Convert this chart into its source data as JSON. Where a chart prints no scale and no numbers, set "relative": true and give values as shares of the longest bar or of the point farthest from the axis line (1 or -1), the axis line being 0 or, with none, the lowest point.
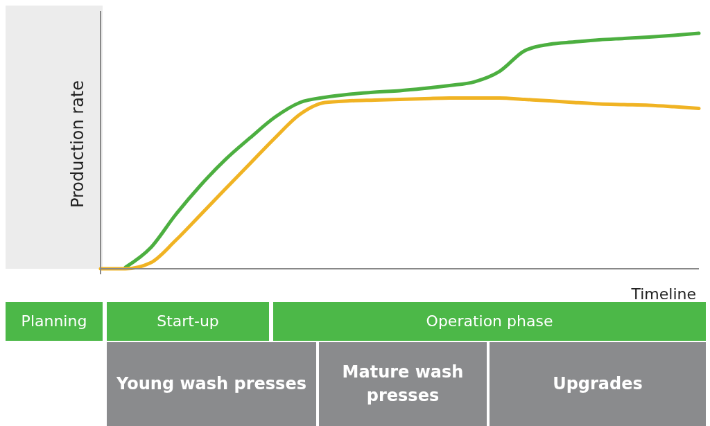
{
  "chart_data": {
    "type": "line",
    "relative": true,
    "xlabel": "Timeline",
    "ylabel": "Production rate",
    "categories": [
      null,
      null,
      null,
      null,
      null,
      null,
      null,
      null,
      null,
      null,
      null,
      null,
      null,
      null,
      null,
      null,
      null,
      null,
      null,
      null,
      null,
      null,
      null,
      null,
      null
    ],
    "series": [
      {
        "color": "#4caf40",
        "values": [
          null,
          0.006,
          0.088,
          0.228,
          0.353,
          0.463,
          0.556,
          0.644,
          0.706,
          0.728,
          0.741,
          0.75,
          0.756,
          0.766,
          0.778,
          0.794,
          0.838,
          0.925,
          0.953,
          0.963,
          0.972,
          0.978,
          0.984,
          0.991,
          1
        ]
      },
      {
        "color": "#f0b323",
        "values": [
          0,
          0,
          0.025,
          0.119,
          0.228,
          0.338,
          0.447,
          0.556,
          0.656,
          0.706,
          0.713,
          0.716,
          0.719,
          0.722,
          0.725,
          0.725,
          0.725,
          0.719,
          0.713,
          0.706,
          0.7,
          0.697,
          0.694,
          0.688,
          0.681
        ]
      }
    ],
    "marker": "none",
    "line_style": "solid",
    "annotations": [
      "Planning",
      "Start-up",
      "Operation phase",
      "Young wash presses",
      "Mature wash presses",
      "Upgrades"
    ]
  }
}
